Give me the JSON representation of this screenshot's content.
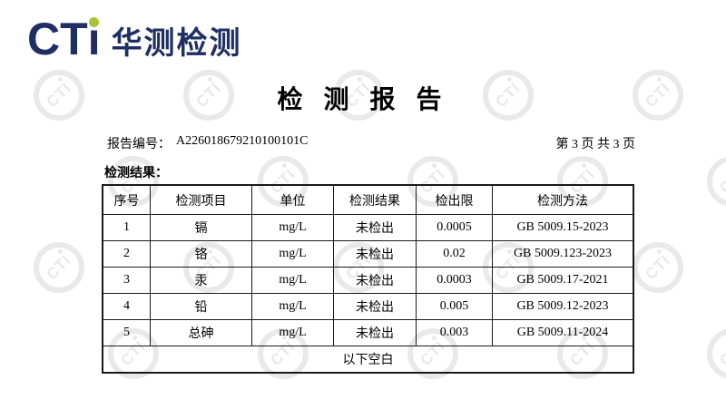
{
  "logo": {
    "brand": "CT",
    "brand_i": "ı",
    "company": "华测检测",
    "navy": "#1f2f63",
    "green": "#a4c53a"
  },
  "title": "检 测 报 告",
  "meta": {
    "report_no_label": "报告编号：",
    "report_no": "A226018679210100101C",
    "page_info": "第 3 页 共 3 页"
  },
  "section_label": "检测结果：",
  "table": {
    "headers": [
      "序号",
      "检测项目",
      "单位",
      "检测结果",
      "检出限",
      "检测方法"
    ],
    "rows": [
      [
        "1",
        "镉",
        "mg/L",
        "未检出",
        "0.0005",
        "GB 5009.15-2023"
      ],
      [
        "2",
        "铬",
        "mg/L",
        "未检出",
        "0.02",
        "GB 5009.123-2023"
      ],
      [
        "3",
        "汞",
        "mg/L",
        "未检出",
        "0.0003",
        "GB 5009.17-2021"
      ],
      [
        "4",
        "铅",
        "mg/L",
        "未检出",
        "0.005",
        "GB 5009.12-2023"
      ],
      [
        "5",
        "总砷",
        "mg/L",
        "未检出",
        "0.003",
        "GB 5009.11-2024"
      ]
    ],
    "footer": "以下空白"
  },
  "watermark": {
    "text": "CTI",
    "color": "#e9e9e9"
  }
}
